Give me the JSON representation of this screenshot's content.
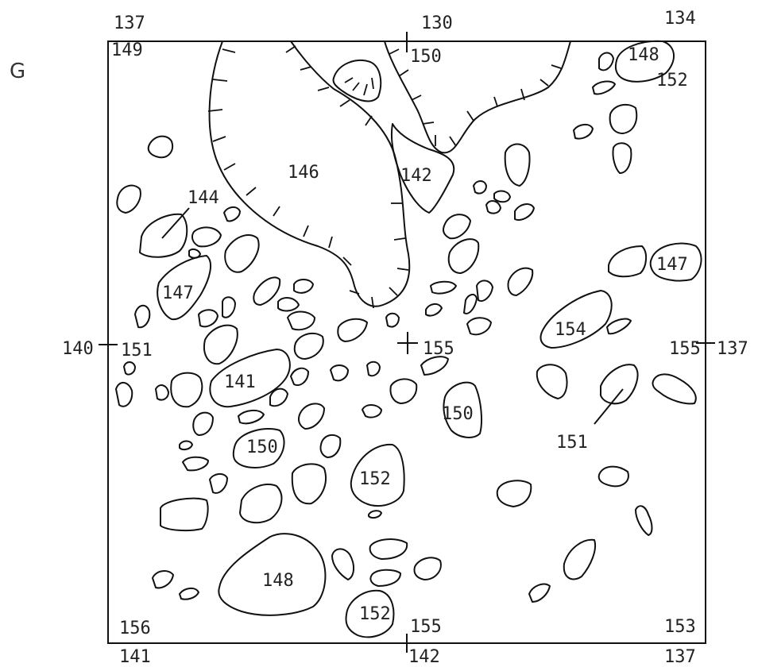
{
  "panel_label": "G",
  "edge_labels": {
    "top_left": "137",
    "top_center": "130",
    "top_right": "134",
    "left_middle": "140",
    "right_middle": "137",
    "bottom_left": "141",
    "bottom_center": "142",
    "bottom_right": "137"
  },
  "inner_labels": {
    "corner_top_left": "149",
    "center_top": "150",
    "corner_top_right": "152",
    "left_middle": "151",
    "center": "155",
    "right_middle": "155",
    "corner_bottom_left": "156",
    "center_bottom": "155",
    "corner_bottom_right": "153"
  },
  "feature_labels": {
    "top_right_blob": "148",
    "large_depression": "146",
    "narrow_depression": "142",
    "left_leader": "144",
    "left_blob": "147",
    "right_blob": "147",
    "left_large_blob": "141",
    "right_elongated_blob": "154",
    "center_right_blob": "150",
    "right_leader": "151",
    "lower_left_blob": "150",
    "center_lower_blob": "152",
    "bottom_large_blob": "148",
    "bottom_center_blob": "152"
  }
}
